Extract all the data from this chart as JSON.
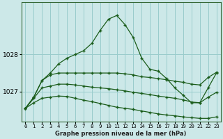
{
  "title": "Graphe pression niveau de la mer (hPa)",
  "background_color": "#cce8e8",
  "grid_color": "#99cccc",
  "line_color": "#1a5c1a",
  "x_labels": [
    "0",
    "1",
    "2",
    "3",
    "4",
    "5",
    "6",
    "7",
    "8",
    "9",
    "10",
    "11",
    "12",
    "13",
    "14",
    "15",
    "16",
    "17",
    "18",
    "19",
    "20",
    "21",
    "22",
    "23"
  ],
  "ylim": [
    1026.2,
    1029.4
  ],
  "yticks": [
    1027,
    1028
  ],
  "series_main": [
    1026.55,
    1026.85,
    1027.3,
    1027.5,
    1027.75,
    1027.9,
    1028.0,
    1028.1,
    1028.3,
    1028.65,
    1028.95,
    1029.05,
    1028.8,
    1028.45,
    1027.9,
    1027.6,
    1027.55,
    1027.35,
    1027.1,
    1026.9,
    1026.7,
    1026.7,
    1027.1,
    1027.5
  ],
  "series_flat1": [
    1026.55,
    1026.85,
    1027.3,
    1027.45,
    1027.5,
    1027.5,
    1027.5,
    1027.5,
    1027.5,
    1027.5,
    1027.5,
    1027.5,
    1027.48,
    1027.45,
    1027.4,
    1027.38,
    1027.35,
    1027.32,
    1027.28,
    1027.25,
    1027.2,
    1027.18,
    1027.38,
    1027.52
  ],
  "series_flat2": [
    1026.55,
    1026.82,
    1027.1,
    1027.15,
    1027.2,
    1027.2,
    1027.18,
    1027.15,
    1027.12,
    1027.1,
    1027.08,
    1027.05,
    1027.02,
    1026.98,
    1026.95,
    1026.92,
    1026.88,
    1026.85,
    1026.82,
    1026.78,
    1026.72,
    1026.7,
    1026.85,
    1026.98
  ],
  "series_flat3": [
    1026.55,
    1026.7,
    1026.82,
    1026.85,
    1026.88,
    1026.87,
    1026.82,
    1026.77,
    1026.73,
    1026.68,
    1026.63,
    1026.58,
    1026.55,
    1026.52,
    1026.48,
    1026.44,
    1026.4,
    1026.37,
    1026.35,
    1026.32,
    1026.3,
    1026.28,
    1026.28,
    1026.32
  ]
}
